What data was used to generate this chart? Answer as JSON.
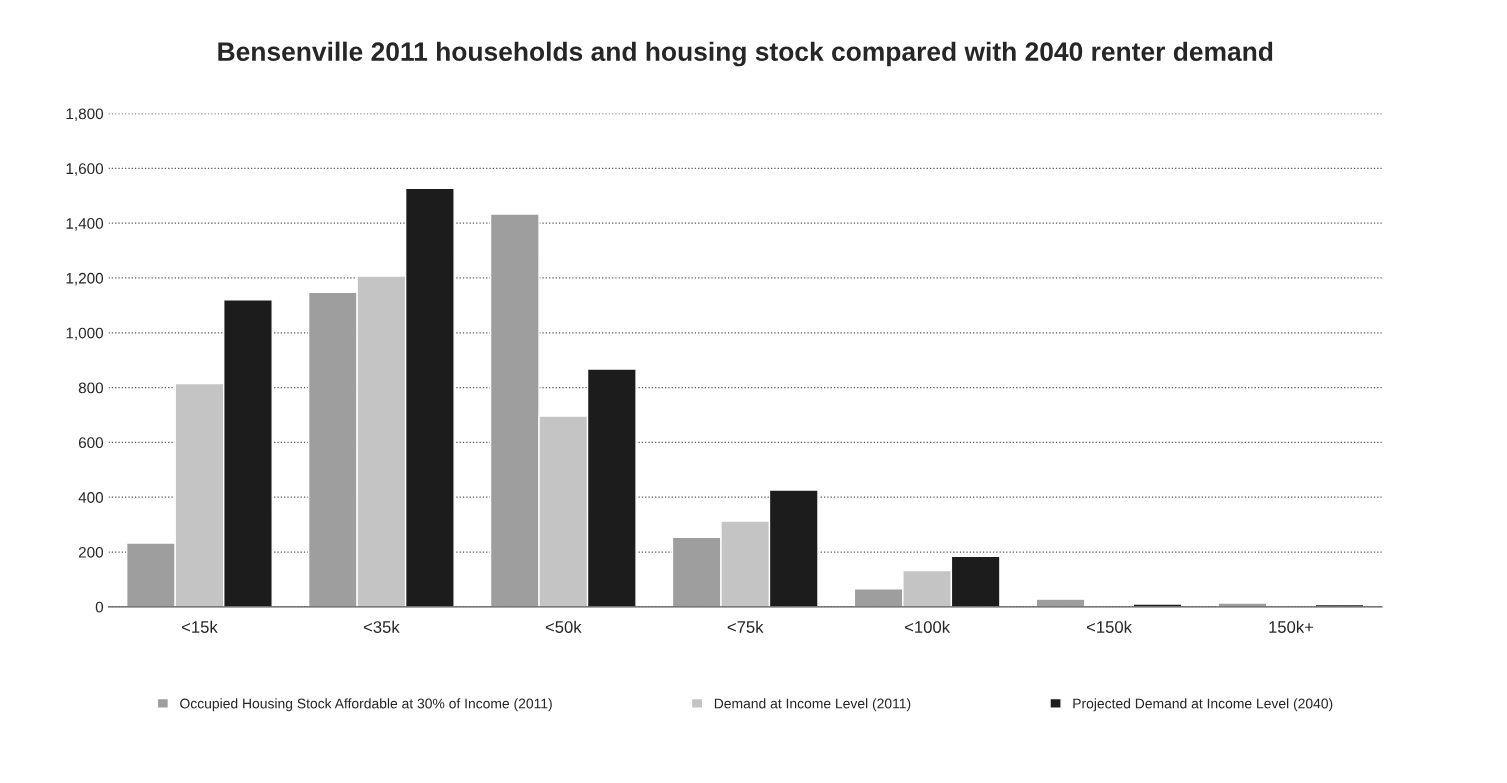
{
  "chart_data": {
    "type": "bar",
    "title": "Bensenville 2011 households and housing stock compared with 2040 renter demand",
    "categories": [
      "<15k",
      "<35k",
      "<50k",
      "<75k",
      "<100k",
      "<150k",
      "150k+"
    ],
    "series": [
      {
        "name": "Occupied Housing Stock Affordable at 30% of Income (2011)",
        "color": "#9e9e9e",
        "values": [
          233,
          1148,
          1433,
          254,
          66,
          28,
          14
        ]
      },
      {
        "name": "Demand at Income Level (2011)",
        "color": "#c4c4c4",
        "values": [
          815,
          1207,
          696,
          313,
          132,
          null,
          null
        ]
      },
      {
        "name": "Projected Demand at Income Level (2040)",
        "color": "#1c1c1c",
        "values": [
          1120,
          1527,
          868,
          426,
          184,
          10,
          8
        ]
      }
    ],
    "ylim": [
      0,
      1800
    ],
    "yticks": [
      {
        "value": 0,
        "label": "0"
      },
      {
        "value": 200,
        "label": "200"
      },
      {
        "value": 400,
        "label": "400"
      },
      {
        "value": 600,
        "label": "600"
      },
      {
        "value": 800,
        "label": "800"
      },
      {
        "value": 1000,
        "label": "1,000"
      },
      {
        "value": 1200,
        "label": "1,200"
      },
      {
        "value": 1400,
        "label": "1,400"
      },
      {
        "value": 1600,
        "label": "1,600"
      },
      {
        "value": 1800,
        "label": "1,800"
      }
    ],
    "grid": "y",
    "legend": "bottom"
  }
}
